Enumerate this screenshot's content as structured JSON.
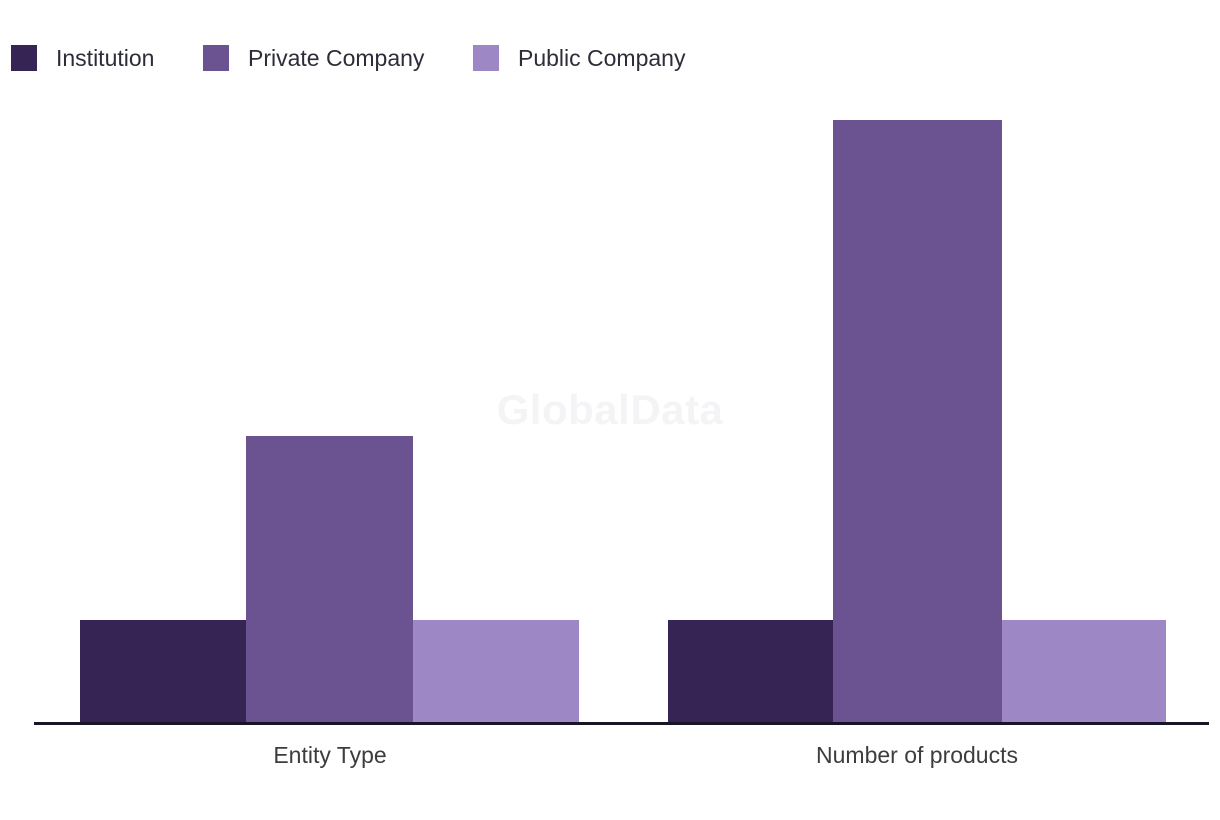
{
  "watermark": "GlobalData",
  "colors": {
    "institution": "#362554",
    "private_company": "#6A5390",
    "public_company": "#9D87C5",
    "axis_line": "#161627",
    "category_label_text": "#3d3d3d",
    "legend_text": "#2d2d3a",
    "watermark_text": "#f4f4f6",
    "background": "#ffffff"
  },
  "legend": {
    "items": [
      {
        "label": "Institution",
        "color": "#362554"
      },
      {
        "label": "Private Company",
        "color": "#6A5390"
      },
      {
        "label": "Public Company",
        "color": "#9D87C5"
      }
    ]
  },
  "chart_data": {
    "type": "bar",
    "categories": [
      "Entity Type",
      "Number of products"
    ],
    "series": [
      {
        "name": "Institution",
        "color": "#362554",
        "values": [
          1,
          1
        ]
      },
      {
        "name": "Private Company",
        "color": "#6A5390",
        "values": [
          2.8,
          5.9
        ]
      },
      {
        "name": "Public Company",
        "color": "#9D87C5",
        "values": [
          1,
          1
        ]
      }
    ],
    "title": "",
    "xlabel": "",
    "ylabel": "",
    "ylim": [
      0,
      6.2
    ],
    "value_axis_visible": false,
    "grid": false,
    "legend_position": "top-left",
    "note": "No value axis shown; values are relative units estimated from bar heights (Institution bar = 1 unit)."
  }
}
